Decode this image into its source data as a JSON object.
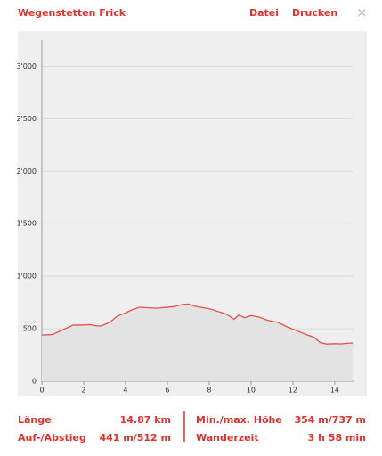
{
  "header": {
    "title": "Wegenstetten Frick",
    "links": [
      "Datei",
      "Drucken"
    ],
    "close": "×"
  },
  "chart_data": {
    "type": "area",
    "color": "#e8524a",
    "fill": "#e3e3e3",
    "grid": true,
    "x": [
      0,
      0.5,
      1,
      1.5,
      2,
      2.3,
      2.5,
      2.8,
      3,
      3.3,
      3.6,
      4,
      4.3,
      4.7,
      5,
      5.5,
      6,
      6.3,
      6.7,
      7,
      7.3,
      7.7,
      8,
      8.5,
      8.8,
      9.2,
      9.4,
      9.7,
      10,
      10.4,
      10.8,
      11.3,
      11.7,
      12.2,
      12.7,
      13,
      13.3,
      13.6,
      14,
      14.3,
      14.6,
      14.87
    ],
    "values": [
      440,
      445,
      490,
      535,
      535,
      540,
      530,
      525,
      540,
      570,
      620,
      650,
      680,
      705,
      700,
      695,
      705,
      710,
      730,
      735,
      715,
      700,
      690,
      660,
      640,
      590,
      630,
      605,
      625,
      610,
      580,
      560,
      520,
      480,
      440,
      420,
      370,
      355,
      358,
      356,
      362,
      365
    ],
    "xlim": [
      0,
      14.9
    ],
    "xticks": [
      0,
      2,
      4,
      6,
      8,
      10,
      12,
      14
    ],
    "ylim": [
      0,
      3250
    ],
    "yticks": [
      {
        "value": 0,
        "label": "0"
      },
      {
        "value": 500,
        "label": "500"
      },
      {
        "value": 1000,
        "label": "1'000"
      },
      {
        "value": 1500,
        "label": "1'500"
      },
      {
        "value": 2000,
        "label": "2'000"
      },
      {
        "value": 2500,
        "label": "2'500"
      },
      {
        "value": 3000,
        "label": "3'000"
      }
    ]
  },
  "stats": [
    [
      "Länge",
      "14.87 km"
    ],
    [
      "Auf-/Abstieg",
      "441 m/512 m"
    ],
    [
      "Min./max. Höhe",
      "354 m/737 m"
    ],
    [
      "Wanderzeit",
      "3 h 58 min"
    ]
  ]
}
